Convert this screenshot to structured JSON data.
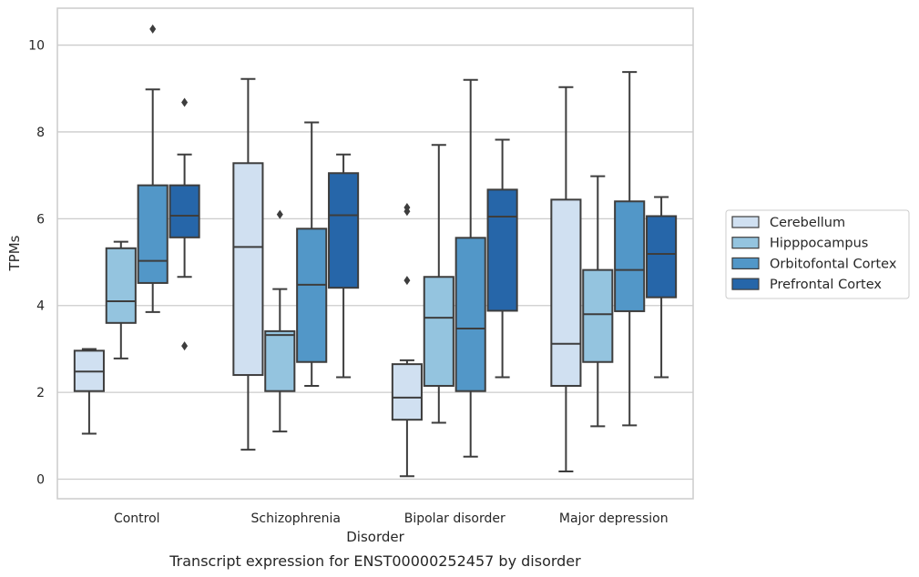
{
  "chart_data": {
    "type": "box",
    "title": "",
    "caption": "Transcript expression for ENST00000252457 by disorder",
    "xlabel": "Disorder",
    "ylabel": "TPMs",
    "ylim": [
      -0.45,
      10.85
    ],
    "yticks": [
      0,
      2,
      4,
      6,
      8,
      10
    ],
    "grid": "horizontal",
    "legend_position": "right",
    "categories": [
      "Control",
      "Schizophrenia",
      "Bipolar disorder",
      "Major depression"
    ],
    "series": [
      {
        "name": "Cerebellum",
        "color": "#d0e0f1",
        "boxes": [
          {
            "whislo": 1.05,
            "q1": 2.03,
            "med": 2.48,
            "q3": 2.96,
            "whishi": 3.0,
            "fliers": []
          },
          {
            "whislo": 0.68,
            "q1": 2.4,
            "med": 5.35,
            "q3": 7.28,
            "whishi": 9.22,
            "fliers": []
          },
          {
            "whislo": 0.07,
            "q1": 1.37,
            "med": 1.88,
            "q3": 2.65,
            "whishi": 2.74,
            "fliers": [
              4.58,
              6.17,
              6.26
            ]
          },
          {
            "whislo": 0.18,
            "q1": 2.15,
            "med": 3.12,
            "q3": 6.44,
            "whishi": 9.03,
            "fliers": []
          }
        ]
      },
      {
        "name": "Hipppocampus",
        "color": "#94c4df",
        "boxes": [
          {
            "whislo": 2.78,
            "q1": 3.6,
            "med": 4.1,
            "q3": 5.32,
            "whishi": 5.47,
            "fliers": []
          },
          {
            "whislo": 1.1,
            "q1": 2.03,
            "med": 3.32,
            "q3": 3.41,
            "whishi": 4.38,
            "fliers": [
              6.1
            ]
          },
          {
            "whislo": 1.3,
            "q1": 2.15,
            "med": 3.72,
            "q3": 4.66,
            "whishi": 7.7,
            "fliers": []
          },
          {
            "whislo": 1.22,
            "q1": 2.7,
            "med": 3.8,
            "q3": 4.82,
            "whishi": 6.98,
            "fliers": []
          }
        ]
      },
      {
        "name": "Orbitofontal Cortex",
        "color": "#5297c8",
        "boxes": [
          {
            "whislo": 3.85,
            "q1": 4.52,
            "med": 5.03,
            "q3": 6.77,
            "whishi": 8.98,
            "fliers": [
              10.37
            ]
          },
          {
            "whislo": 2.15,
            "q1": 2.7,
            "med": 4.48,
            "q3": 5.77,
            "whishi": 8.22,
            "fliers": []
          },
          {
            "whislo": 0.52,
            "q1": 2.03,
            "med": 3.47,
            "q3": 5.56,
            "whishi": 9.2,
            "fliers": []
          },
          {
            "whislo": 1.24,
            "q1": 3.87,
            "med": 4.82,
            "q3": 6.4,
            "whishi": 9.38,
            "fliers": []
          }
        ]
      },
      {
        "name": "Prefrontal Cortex",
        "color": "#2666a9",
        "boxes": [
          {
            "whislo": 4.66,
            "q1": 5.57,
            "med": 6.07,
            "q3": 6.77,
            "whishi": 7.48,
            "fliers": [
              3.07,
              8.68
            ]
          },
          {
            "whislo": 2.35,
            "q1": 4.41,
            "med": 6.08,
            "q3": 7.05,
            "whishi": 7.48,
            "fliers": []
          },
          {
            "whislo": 2.35,
            "q1": 3.88,
            "med": 6.05,
            "q3": 6.67,
            "whishi": 7.82,
            "fliers": []
          },
          {
            "whislo": 2.35,
            "q1": 4.19,
            "med": 5.19,
            "q3": 6.06,
            "whishi": 6.5,
            "fliers": []
          }
        ]
      }
    ]
  }
}
